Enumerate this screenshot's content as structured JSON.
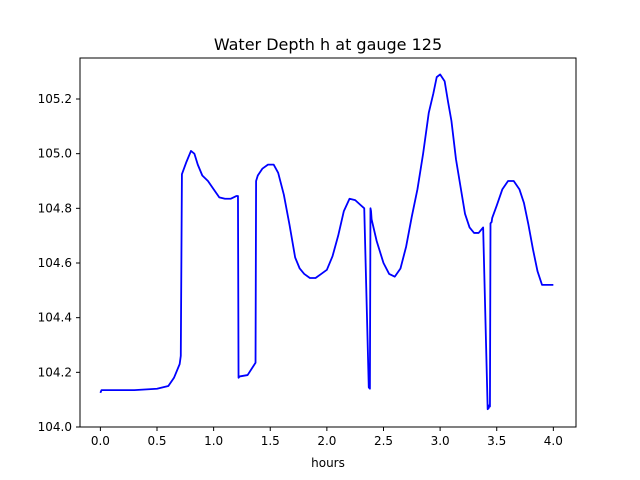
{
  "chart_data": {
    "type": "line",
    "title": "Water Depth h at gauge 125",
    "xlabel": "hours",
    "ylabel": "",
    "xlim": [
      -0.18,
      4.2
    ],
    "ylim": [
      104.0,
      105.35
    ],
    "xticks": [
      0.0,
      0.5,
      1.0,
      1.5,
      2.0,
      2.5,
      3.0,
      3.5,
      4.0
    ],
    "xtick_labels": [
      "0.0",
      "0.5",
      "1.0",
      "1.5",
      "2.0",
      "2.5",
      "3.0",
      "3.5",
      "4.0"
    ],
    "yticks": [
      104.0,
      104.2,
      104.4,
      104.6,
      104.8,
      105.0,
      105.2
    ],
    "ytick_labels": [
      "104.0",
      "104.2",
      "104.4",
      "104.6",
      "104.8",
      "105.0",
      "105.2"
    ],
    "grid": false,
    "legend": false,
    "series": [
      {
        "color": "#0000ff",
        "x": [
          0.0,
          0.01,
          0.1,
          0.3,
          0.5,
          0.6,
          0.65,
          0.7,
          0.71,
          0.72,
          0.76,
          0.8,
          0.83,
          0.86,
          0.9,
          0.95,
          1.0,
          1.05,
          1.1,
          1.15,
          1.2,
          1.215,
          1.22,
          1.23,
          1.3,
          1.37,
          1.375,
          1.39,
          1.43,
          1.48,
          1.53,
          1.57,
          1.62,
          1.67,
          1.72,
          1.76,
          1.8,
          1.85,
          1.9,
          1.95,
          2.0,
          2.05,
          2.1,
          2.15,
          2.2,
          2.25,
          2.29,
          2.33,
          2.37,
          2.38,
          2.385,
          2.39,
          2.395,
          2.44,
          2.5,
          2.55,
          2.6,
          2.65,
          2.7,
          2.75,
          2.8,
          2.85,
          2.9,
          2.94,
          2.97,
          3.0,
          3.04,
          3.07,
          3.1,
          3.14,
          3.18,
          3.22,
          3.26,
          3.3,
          3.34,
          3.38,
          3.42,
          3.43,
          3.435,
          3.44,
          3.445,
          3.455,
          3.46,
          3.5,
          3.55,
          3.6,
          3.65,
          3.7,
          3.74,
          3.78,
          3.82,
          3.86,
          3.9,
          3.94,
          4.0
        ],
        "y": [
          104.125,
          104.135,
          104.135,
          104.135,
          104.14,
          104.15,
          104.18,
          104.23,
          104.26,
          104.925,
          104.97,
          105.01,
          105.0,
          104.96,
          104.92,
          104.9,
          104.87,
          104.84,
          104.835,
          104.835,
          104.845,
          104.845,
          104.18,
          104.185,
          104.19,
          104.235,
          104.9,
          104.92,
          104.945,
          104.96,
          104.96,
          104.93,
          104.85,
          104.74,
          104.62,
          104.58,
          104.56,
          104.545,
          104.545,
          104.56,
          104.575,
          104.625,
          104.7,
          104.79,
          104.835,
          104.83,
          104.815,
          104.8,
          104.145,
          104.14,
          104.8,
          104.79,
          104.76,
          104.68,
          104.6,
          104.56,
          104.55,
          104.58,
          104.66,
          104.77,
          104.87,
          105.0,
          105.15,
          105.22,
          105.28,
          105.29,
          105.265,
          105.19,
          105.12,
          104.98,
          104.88,
          104.78,
          104.73,
          104.71,
          104.71,
          104.73,
          104.065,
          104.07,
          104.08,
          104.075,
          104.745,
          104.75,
          104.765,
          104.81,
          104.87,
          104.9,
          104.9,
          104.87,
          104.82,
          104.74,
          104.65,
          104.57,
          104.52,
          104.52,
          104.52
        ]
      }
    ]
  }
}
